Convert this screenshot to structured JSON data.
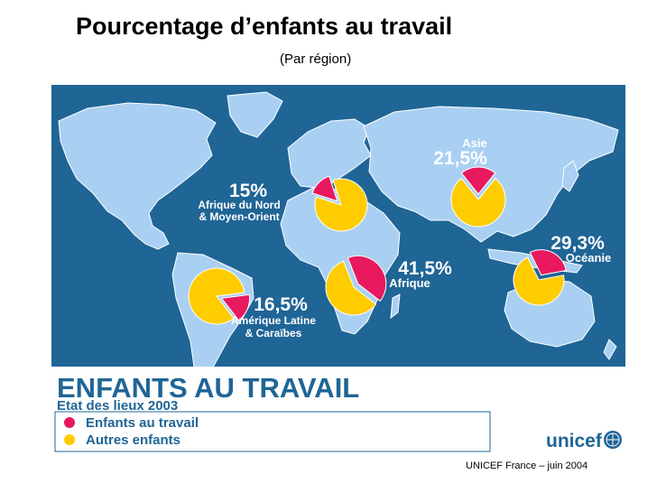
{
  "page": {
    "title": "Pourcentage d’enfants au travail",
    "subtitle": "(Par région)",
    "credit": "UNICEF France –  juin 2004"
  },
  "map": {
    "colors": {
      "ocean": "#1f6596",
      "land": "#a9d0f2",
      "border": "#ffffff",
      "children_working": "#e8195e",
      "other_children": "#ffcc00"
    },
    "regions": [
      {
        "id": "mena",
        "percent_label": "15%",
        "name_lines": [
          "Afrique du Nord",
          "& Moyen-Orient"
        ],
        "children_working_pct": 15
      },
      {
        "id": "asia",
        "percent_label": "21,5%",
        "name_lines": [
          "Asie"
        ],
        "children_working_pct": 21.5
      },
      {
        "id": "oceania",
        "percent_label": "29,3%",
        "name_lines": [
          "Océanie"
        ],
        "children_working_pct": 29.3
      },
      {
        "id": "africa",
        "percent_label": "41,5%",
        "name_lines": [
          "Afrique"
        ],
        "children_working_pct": 41.5
      },
      {
        "id": "latam",
        "percent_label": "16,5%",
        "name_lines": [
          "Amérique Latine",
          "& Caraïbes"
        ],
        "children_working_pct": 16.5
      }
    ],
    "banner": {
      "heading": "ENFANTS AU TRAVAIL",
      "subheading": "Etat des lieux 2003",
      "legend": [
        "Enfants au travail",
        "Autres enfants"
      ],
      "logo_text": "unicef",
      "logo_icon": "unicef-emblem-icon"
    }
  }
}
